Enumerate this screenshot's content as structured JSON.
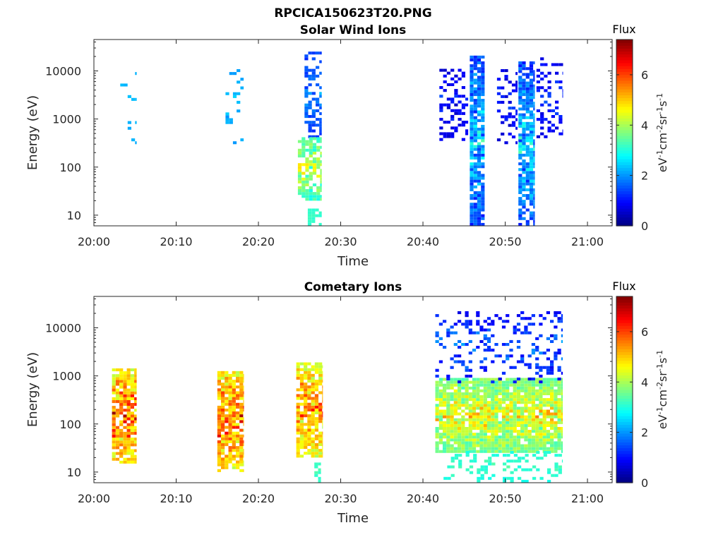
{
  "figure_title": "RPCICA150623T20.PNG",
  "chart_data": [
    {
      "type": "heatmap",
      "title": "Solar Wind Ions",
      "xlabel": "Time",
      "ylabel": "Energy (eV)",
      "y_scale": "log",
      "xlim_minutes": [
        0,
        63
      ],
      "ylim": [
        6,
        45000
      ],
      "x_ticks": [
        {
          "value": 0,
          "label": "20:00"
        },
        {
          "value": 10,
          "label": "20:10"
        },
        {
          "value": 20,
          "label": "20:20"
        },
        {
          "value": 30,
          "label": "20:30"
        },
        {
          "value": 40,
          "label": "20:40"
        },
        {
          "value": 50,
          "label": "20:50"
        },
        {
          "value": 60,
          "label": "21:00"
        }
      ],
      "y_ticks": [
        {
          "value": 10,
          "label": "10"
        },
        {
          "value": 100,
          "label": "100"
        },
        {
          "value": 1000,
          "label": "1000"
        },
        {
          "value": 10000,
          "label": "10000"
        }
      ],
      "colorbar": {
        "title": "Flux",
        "range": [
          0,
          7.4
        ],
        "ticks": [
          0,
          2,
          4,
          6
        ],
        "label": "eV-1cm-2sr-1s-1",
        "colormap": "jet"
      },
      "bursts": [
        {
          "t_start": 3.2,
          "t_end": 5.2,
          "e_min": 300,
          "e_max": 9000,
          "flux_min": 2.0,
          "flux_max": 2.6,
          "density": 0.15
        },
        {
          "t_start": 16.0,
          "t_end": 18.2,
          "e_min": 300,
          "e_max": 11000,
          "flux_min": 1.8,
          "flux_max": 2.6,
          "density": 0.15
        },
        {
          "t_start": 25.6,
          "t_end": 27.7,
          "e_min": 400,
          "e_max": 22000,
          "flux_min": 1.0,
          "flux_max": 2.2,
          "density": 0.5
        },
        {
          "t_start": 24.8,
          "t_end": 27.7,
          "e_min": 20,
          "e_max": 400,
          "flux_min": 2.5,
          "flux_max": 5.0,
          "density": 0.7
        },
        {
          "t_start": 26.0,
          "t_end": 27.7,
          "e_min": 6,
          "e_max": 13,
          "flux_min": 3.0,
          "flux_max": 3.3,
          "density": 0.6
        },
        {
          "t_start": 42.0,
          "t_end": 45.5,
          "e_min": 350,
          "e_max": 11000,
          "flux_min": 0.3,
          "flux_max": 1.5,
          "density": 0.35
        },
        {
          "t_start": 45.7,
          "t_end": 47.5,
          "e_min": 6,
          "e_max": 20000,
          "flux_min": 0.6,
          "flux_max": 3.2,
          "density": 0.85
        },
        {
          "t_start": 49.0,
          "t_end": 51.5,
          "e_min": 300,
          "e_max": 12000,
          "flux_min": 0.3,
          "flux_max": 1.5,
          "density": 0.3
        },
        {
          "t_start": 51.6,
          "t_end": 53.6,
          "e_min": 6,
          "e_max": 14000,
          "flux_min": 0.6,
          "flux_max": 3.2,
          "density": 0.85
        },
        {
          "t_start": 53.8,
          "t_end": 57.0,
          "e_min": 400,
          "e_max": 18000,
          "flux_min": 0.4,
          "flux_max": 1.6,
          "density": 0.25
        }
      ]
    },
    {
      "type": "heatmap",
      "title": "Cometary Ions",
      "xlabel": "Time",
      "ylabel": "Energy (eV)",
      "y_scale": "log",
      "xlim_minutes": [
        0,
        63
      ],
      "ylim": [
        6,
        45000
      ],
      "x_ticks": [
        {
          "value": 0,
          "label": "20:00"
        },
        {
          "value": 10,
          "label": "20:10"
        },
        {
          "value": 20,
          "label": "20:20"
        },
        {
          "value": 30,
          "label": "20:30"
        },
        {
          "value": 40,
          "label": "20:40"
        },
        {
          "value": 50,
          "label": "20:50"
        },
        {
          "value": 60,
          "label": "21:00"
        }
      ],
      "y_ticks": [
        {
          "value": 10,
          "label": "10"
        },
        {
          "value": 100,
          "label": "100"
        },
        {
          "value": 1000,
          "label": "1000"
        },
        {
          "value": 10000,
          "label": "10000"
        }
      ],
      "colorbar": {
        "title": "Flux",
        "range": [
          0,
          7.4
        ],
        "ticks": [
          0,
          2,
          4,
          6
        ],
        "label": "eV-1cm-2sr-1s-1",
        "colormap": "jet"
      },
      "bursts": [
        {
          "t_start": 2.2,
          "t_end": 5.2,
          "e_min": 15,
          "e_max": 1400,
          "flux_min": 3.5,
          "flux_max": 7.0,
          "density": 0.85
        },
        {
          "t_start": 15.0,
          "t_end": 18.2,
          "e_min": 10,
          "e_max": 1200,
          "flux_min": 3.5,
          "flux_max": 7.0,
          "density": 0.8
        },
        {
          "t_start": 24.6,
          "t_end": 27.8,
          "e_min": 20,
          "e_max": 1800,
          "flux_min": 3.5,
          "flux_max": 6.5,
          "density": 0.8
        },
        {
          "t_start": 26.8,
          "t_end": 27.6,
          "e_min": 6,
          "e_max": 15,
          "flux_min": 3.0,
          "flux_max": 3.4,
          "density": 0.6
        },
        {
          "t_start": 41.5,
          "t_end": 57.0,
          "e_min": 25,
          "e_max": 800,
          "flux_min": 2.8,
          "flux_max": 5.4,
          "density": 0.92
        },
        {
          "t_start": 41.5,
          "t_end": 57.0,
          "e_min": 700,
          "e_max": 20000,
          "flux_min": 0.4,
          "flux_max": 2.2,
          "density": 0.22
        },
        {
          "t_start": 42.5,
          "t_end": 57.0,
          "e_min": 6,
          "e_max": 25,
          "flux_min": 2.8,
          "flux_max": 3.4,
          "density": 0.3
        }
      ]
    }
  ]
}
